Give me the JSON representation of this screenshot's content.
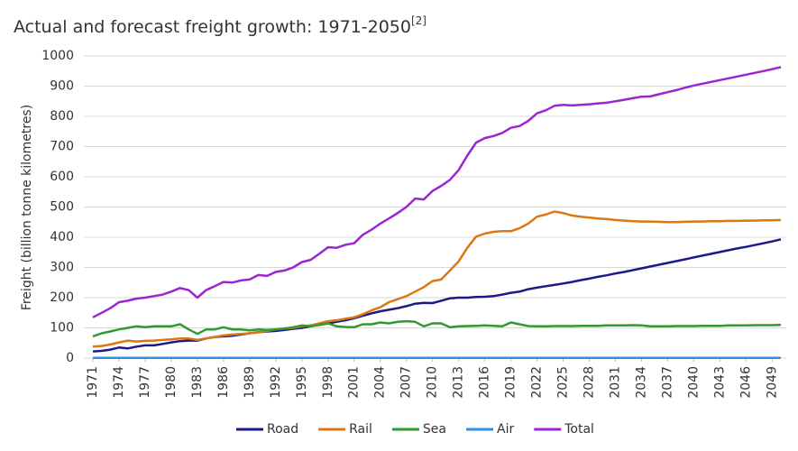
{
  "chart_data": {
    "type": "line",
    "title": "Actual and forecast freight growth: 1971-2050",
    "title_note": "[2]",
    "y_label": "Freight (billion tonne kilometres)",
    "x": [
      1971,
      1972,
      1973,
      1974,
      1975,
      1976,
      1977,
      1978,
      1979,
      1980,
      1981,
      1982,
      1983,
      1984,
      1985,
      1986,
      1987,
      1988,
      1989,
      1990,
      1991,
      1992,
      1993,
      1994,
      1995,
      1996,
      1997,
      1998,
      1999,
      2000,
      2001,
      2002,
      2003,
      2004,
      2005,
      2006,
      2007,
      2008,
      2009,
      2010,
      2011,
      2012,
      2013,
      2014,
      2015,
      2016,
      2017,
      2018,
      2019,
      2020,
      2021,
      2022,
      2023,
      2024,
      2025,
      2026,
      2027,
      2028,
      2029,
      2030,
      2031,
      2032,
      2033,
      2034,
      2035,
      2036,
      2037,
      2038,
      2039,
      2040,
      2041,
      2042,
      2043,
      2044,
      2045,
      2046,
      2047,
      2048,
      2049,
      2050
    ],
    "xlim": [
      1971,
      2050
    ],
    "xticks": [
      1971,
      1974,
      1977,
      1980,
      1983,
      1986,
      1989,
      1992,
      1995,
      1998,
      2001,
      2004,
      2007,
      2010,
      2013,
      2016,
      2019,
      2022,
      2025,
      2028,
      2031,
      2034,
      2037,
      2040,
      2043,
      2046,
      2049
    ],
    "ylim": [
      0,
      1000
    ],
    "yticks": [
      0,
      100,
      200,
      300,
      400,
      500,
      600,
      700,
      800,
      900,
      1000
    ],
    "grid": true,
    "legend": "bottom",
    "series": [
      {
        "name": "Road",
        "color": "#1c1a88",
        "values": [
          22,
          24,
          28,
          35,
          32,
          38,
          42,
          42,
          47,
          52,
          56,
          58,
          58,
          65,
          70,
          72,
          74,
          78,
          82,
          86,
          88,
          90,
          93,
          97,
          100,
          105,
          110,
          115,
          120,
          125,
          132,
          140,
          148,
          155,
          160,
          165,
          172,
          180,
          183,
          182,
          190,
          198,
          200,
          200,
          202,
          203,
          205,
          210,
          216,
          220,
          228,
          233,
          238,
          242,
          247,
          252,
          258,
          263,
          269,
          274,
          280,
          285,
          291,
          297,
          303,
          309,
          315,
          321,
          327,
          333,
          339,
          345,
          351,
          357,
          363,
          368,
          374,
          380,
          386,
          393
        ]
      },
      {
        "name": "Rail",
        "color": "#dc7712",
        "values": [
          38,
          40,
          45,
          52,
          58,
          55,
          57,
          58,
          60,
          62,
          65,
          65,
          60,
          65,
          70,
          75,
          78,
          80,
          82,
          85,
          90,
          95,
          98,
          100,
          105,
          108,
          115,
          122,
          125,
          130,
          135,
          145,
          158,
          168,
          185,
          195,
          205,
          220,
          235,
          255,
          260,
          290,
          320,
          365,
          402,
          412,
          418,
          420,
          420,
          430,
          445,
          468,
          475,
          485,
          480,
          472,
          468,
          465,
          462,
          460,
          457,
          455,
          453,
          452,
          452,
          451,
          450,
          450,
          451,
          452,
          452,
          453,
          453,
          454,
          454,
          455,
          455,
          456,
          456,
          457
        ]
      },
      {
        "name": "Sea",
        "color": "#2f9a2f",
        "values": [
          72,
          82,
          88,
          95,
          100,
          105,
          102,
          105,
          105,
          105,
          112,
          95,
          80,
          95,
          95,
          102,
          95,
          95,
          92,
          95,
          93,
          95,
          98,
          102,
          108,
          105,
          110,
          115,
          105,
          103,
          102,
          112,
          112,
          118,
          115,
          120,
          122,
          120,
          105,
          115,
          115,
          102,
          105,
          106,
          107,
          108,
          107,
          105,
          118,
          112,
          106,
          105,
          105,
          106,
          106,
          106,
          107,
          107,
          107,
          108,
          108,
          108,
          109,
          108,
          105,
          105,
          105,
          106,
          106,
          106,
          107,
          107,
          107,
          108,
          108,
          108,
          109,
          109,
          109,
          110
        ]
      },
      {
        "name": "Air",
        "color": "#2e8fe6",
        "values": [
          1,
          1,
          1,
          1,
          1,
          1,
          1,
          1,
          1,
          1,
          1,
          1,
          1,
          1,
          1,
          1,
          1,
          1,
          1,
          1,
          1,
          1,
          1,
          1,
          1,
          1,
          1,
          1,
          1,
          1,
          1,
          1,
          1,
          1,
          1,
          1,
          1,
          1,
          1,
          1,
          1,
          1,
          1,
          1,
          1,
          1,
          1,
          1,
          1,
          1,
          1,
          1,
          1,
          1,
          1,
          1,
          1,
          1,
          1,
          1,
          1,
          1,
          1,
          1,
          1,
          1,
          1,
          1,
          1,
          1,
          1,
          1,
          1,
          1,
          1,
          1,
          1,
          1,
          1,
          1
        ]
      },
      {
        "name": "Total",
        "color": "#9c25d3",
        "values": [
          135,
          150,
          165,
          185,
          190,
          197,
          200,
          205,
          210,
          220,
          232,
          225,
          200,
          225,
          238,
          252,
          250,
          257,
          260,
          275,
          272,
          285,
          290,
          300,
          318,
          325,
          345,
          367,
          365,
          375,
          380,
          408,
          425,
          445,
          462,
          480,
          500,
          528,
          525,
          553,
          570,
          590,
          622,
          670,
          713,
          728,
          735,
          745,
          762,
          768,
          785,
          810,
          820,
          835,
          838,
          836,
          838,
          840,
          843,
          845,
          850,
          855,
          860,
          865,
          866,
          873,
          880,
          887,
          895,
          902,
          908,
          914,
          920,
          926,
          932,
          938,
          944,
          950,
          956,
          963
        ]
      }
    ]
  }
}
